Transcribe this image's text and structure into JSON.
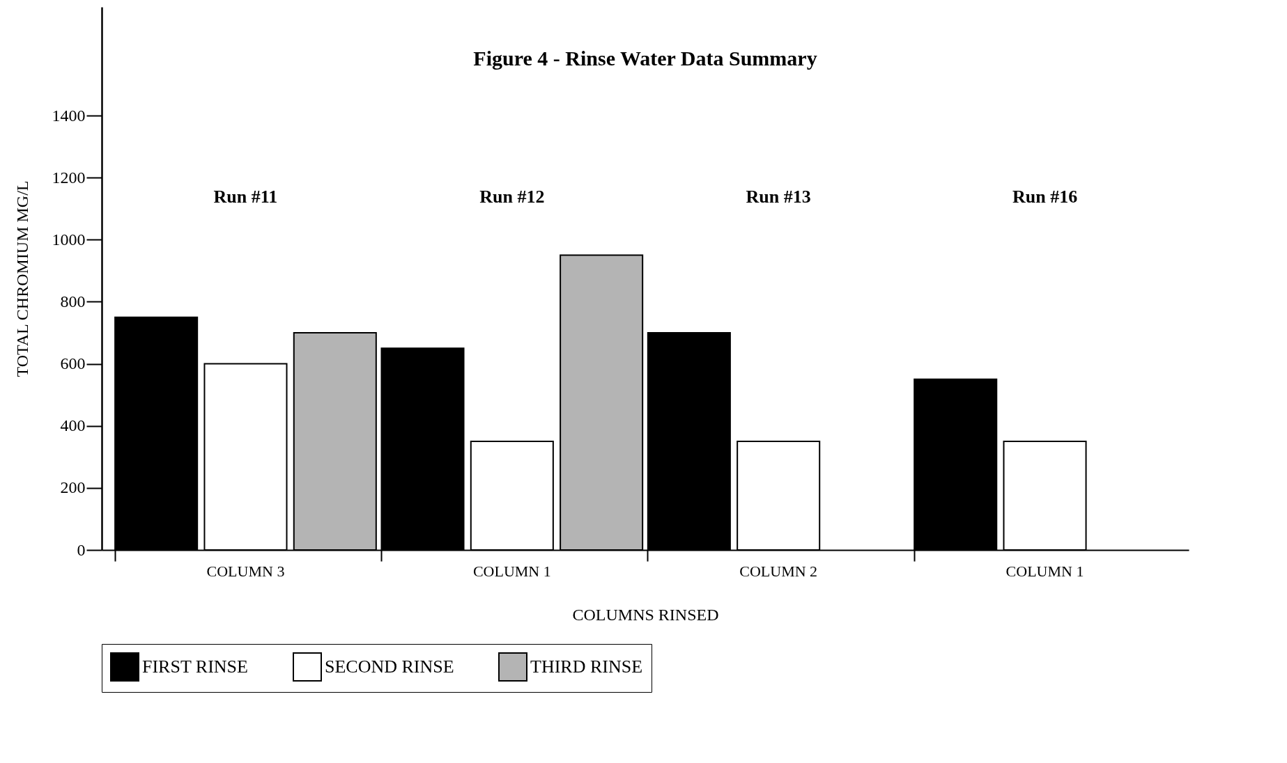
{
  "chart_data": {
    "type": "bar",
    "title": "Figure 4 - Rinse Water Data Summary",
    "xlabel": "COLUMNS RINSED",
    "ylabel": "TOTAL CHROMIUM MG/L",
    "categories": [
      "COLUMN 3",
      "COLUMN 1",
      "COLUMN 2",
      "COLUMN 1"
    ],
    "series": [
      {
        "name": "FIRST RINSE",
        "color": "#000000",
        "values": [
          750,
          650,
          700,
          550
        ]
      },
      {
        "name": "SECOND RINSE",
        "color": "#ffffff",
        "values": [
          600,
          350,
          350,
          350
        ]
      },
      {
        "name": "THIRD RINSE",
        "color": "#b4b4b4",
        "values": [
          700,
          950,
          null,
          null
        ]
      }
    ],
    "annotations": [
      "Run #11",
      "Run #12",
      "Run #13",
      "Run #16"
    ],
    "ylim": [
      0,
      1750
    ],
    "yticks": [
      0,
      200,
      400,
      600,
      800,
      1000,
      1200,
      1400
    ],
    "grid": false,
    "legend": "bottom"
  }
}
